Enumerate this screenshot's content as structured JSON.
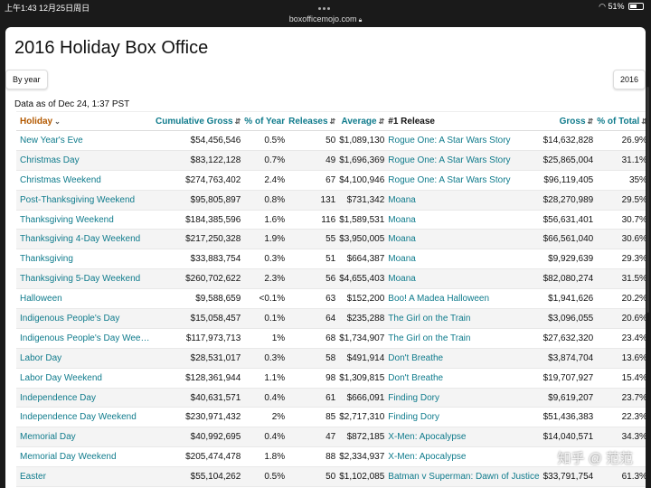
{
  "status": {
    "time": "上午1:43",
    "date": "12月25日周日",
    "battery": "51%",
    "battery_level": 0.51
  },
  "browser": {
    "url": "boxofficemojo.com"
  },
  "page": {
    "title": "2016 Holiday Box Office",
    "by_year_label": "By year",
    "year_select": "2016",
    "as_of": "Data as of Dec 24, 1:37 PST"
  },
  "table": {
    "headers": [
      "Holiday",
      "Cumulative Gross",
      "% of Year",
      "Releases",
      "Average",
      "#1 Release",
      "Gross",
      "% of Total"
    ],
    "rows": [
      [
        "New Year's Eve",
        "$54,456,546",
        "0.5%",
        "50",
        "$1,089,130",
        "Rogue One: A Star Wars Story",
        "$14,632,828",
        "26.9%"
      ],
      [
        "Christmas Day",
        "$83,122,128",
        "0.7%",
        "49",
        "$1,696,369",
        "Rogue One: A Star Wars Story",
        "$25,865,004",
        "31.1%"
      ],
      [
        "Christmas Weekend",
        "$274,763,402",
        "2.4%",
        "67",
        "$4,100,946",
        "Rogue One: A Star Wars Story",
        "$96,119,405",
        "35%"
      ],
      [
        "Post-Thanksgiving Weekend",
        "$95,805,897",
        "0.8%",
        "131",
        "$731,342",
        "Moana",
        "$28,270,989",
        "29.5%"
      ],
      [
        "Thanksgiving Weekend",
        "$184,385,596",
        "1.6%",
        "116",
        "$1,589,531",
        "Moana",
        "$56,631,401",
        "30.7%"
      ],
      [
        "Thanksgiving 4-Day Weekend",
        "$217,250,328",
        "1.9%",
        "55",
        "$3,950,005",
        "Moana",
        "$66,561,040",
        "30.6%"
      ],
      [
        "Thanksgiving",
        "$33,883,754",
        "0.3%",
        "51",
        "$664,387",
        "Moana",
        "$9,929,639",
        "29.3%"
      ],
      [
        "Thanksgiving 5-Day Weekend",
        "$260,702,622",
        "2.3%",
        "56",
        "$4,655,403",
        "Moana",
        "$82,080,274",
        "31.5%"
      ],
      [
        "Halloween",
        "$9,588,659",
        "<0.1%",
        "63",
        "$152,200",
        "Boo! A Madea Halloween",
        "$1,941,626",
        "20.2%"
      ],
      [
        "Indigenous People's Day",
        "$15,058,457",
        "0.1%",
        "64",
        "$235,288",
        "The Girl on the Train",
        "$3,096,055",
        "20.6%"
      ],
      [
        "Indigenous People's Day Weekend",
        "$117,973,713",
        "1%",
        "68",
        "$1,734,907",
        "The Girl on the Train",
        "$27,632,320",
        "23.4%"
      ],
      [
        "Labor Day",
        "$28,531,017",
        "0.3%",
        "58",
        "$491,914",
        "Don't Breathe",
        "$3,874,704",
        "13.6%"
      ],
      [
        "Labor Day Weekend",
        "$128,361,944",
        "1.1%",
        "98",
        "$1,309,815",
        "Don't Breathe",
        "$19,707,927",
        "15.4%"
      ],
      [
        "Independence Day",
        "$40,631,571",
        "0.4%",
        "61",
        "$666,091",
        "Finding Dory",
        "$9,619,207",
        "23.7%"
      ],
      [
        "Independence Day Weekend",
        "$230,971,432",
        "2%",
        "85",
        "$2,717,310",
        "Finding Dory",
        "$51,436,383",
        "22.3%"
      ],
      [
        "Memorial Day",
        "$40,992,695",
        "0.4%",
        "47",
        "$872,185",
        "X-Men: Apocalypse",
        "$14,040,571",
        "34.3%"
      ],
      [
        "Memorial Day Weekend",
        "$205,474,478",
        "1.8%",
        "88",
        "$2,334,937",
        "X-Men: Apocalypse",
        "",
        ""
      ],
      [
        "Easter",
        "$55,104,262",
        "0.5%",
        "50",
        "$1,102,085",
        "Batman v Superman: Dawn of Justice",
        "$33,791,754",
        "61.3%"
      ]
    ]
  },
  "watermark": "知乎 @ 范范"
}
